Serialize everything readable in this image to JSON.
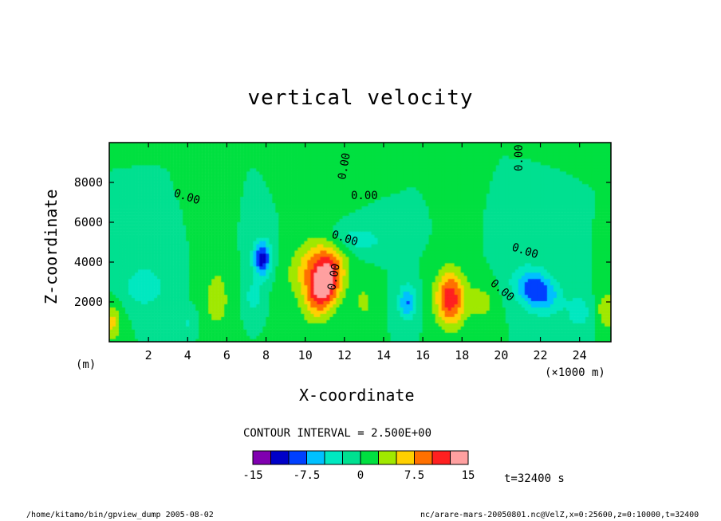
{
  "chart_data": {
    "type": "heatmap",
    "title": "vertical velocity",
    "xlabel": "X-coordinate",
    "ylabel": "Z-coordinate",
    "x_unit": "(×1000 m)",
    "y_unit": "(m)",
    "xlim": [
      0,
      25.6
    ],
    "ylim": [
      0,
      10000
    ],
    "x_ticks": [
      2,
      4,
      6,
      8,
      10,
      12,
      14,
      16,
      18,
      20,
      22,
      24
    ],
    "y_ticks": [
      2000,
      4000,
      6000,
      8000
    ],
    "contour_interval_text": "CONTOUR INTERVAL = 2.500E+00",
    "contour_labels": [
      "0.00",
      "0.00",
      "0.00",
      "0.00",
      "0.00",
      "0.00",
      "0.00",
      "0.00"
    ],
    "colorbar": {
      "colors": [
        "#8000b0",
        "#0000c8",
        "#0040ff",
        "#00c0ff",
        "#00e8c0",
        "#00e090",
        "#00e040",
        "#a0e800",
        "#ffd000",
        "#ff7000",
        "#ff2020",
        "#ffa0a0"
      ],
      "tick_labels": [
        "-15",
        "-7.5",
        "0",
        "7.5",
        "15"
      ],
      "tick_values": [
        -15,
        -7.5,
        0,
        7.5,
        15
      ],
      "range": [
        -15,
        15
      ]
    },
    "time_label": "t=32400 s",
    "features": [
      {
        "x": 11.0,
        "z": 2900,
        "w": 15.0,
        "sx": 0.85,
        "sz": 1500,
        "tilt": -0.00022
      },
      {
        "x": 10.3,
        "z": 4000,
        "w": 6.0,
        "sx": 1.1,
        "sz": 1500,
        "tilt": -0.0003
      },
      {
        "x": 17.4,
        "z": 2200,
        "w": 12.0,
        "sx": 0.75,
        "sz": 1400,
        "tilt": 0
      },
      {
        "x": 5.5,
        "z": 2200,
        "w": 4.5,
        "sx": 0.6,
        "sz": 1500,
        "tilt": 0
      },
      {
        "x": 0.1,
        "z": 1000,
        "w": 6.0,
        "sx": 0.5,
        "sz": 900,
        "tilt": 0
      },
      {
        "x": 25.4,
        "z": 1600,
        "w": 5.0,
        "sx": 0.5,
        "sz": 1000,
        "tilt": 0
      },
      {
        "x": 13.0,
        "z": 2000,
        "w": 3.0,
        "sx": 0.6,
        "sz": 1200,
        "tilt": 0
      },
      {
        "x": 19.0,
        "z": 2000,
        "w": 3.5,
        "sx": 0.7,
        "sz": 1000,
        "tilt": 0
      },
      {
        "x": 7.8,
        "z": 4200,
        "w": -12.0,
        "sx": 0.45,
        "sz": 900,
        "tilt": 0
      },
      {
        "x": 7.4,
        "z": 2300,
        "w": -5.0,
        "sx": 0.4,
        "sz": 700,
        "tilt": 0
      },
      {
        "x": 15.2,
        "z": 2000,
        "w": -8.0,
        "sx": 0.45,
        "sz": 900,
        "tilt": 0
      },
      {
        "x": 21.8,
        "z": 2600,
        "w": -10.0,
        "sx": 1.1,
        "sz": 1100,
        "tilt": 0.0003
      },
      {
        "x": 1.8,
        "z": 2800,
        "w": -5.0,
        "sx": 1.0,
        "sz": 1000,
        "tilt": 0
      },
      {
        "x": 12.6,
        "z": 5200,
        "w": -4.0,
        "sx": 1.6,
        "sz": 700,
        "tilt": 0.0004
      },
      {
        "x": 24.0,
        "z": 1500,
        "w": -4.0,
        "sx": 0.6,
        "sz": 900,
        "tilt": 0
      },
      {
        "x": 4.0,
        "z": 1000,
        "w": -3.0,
        "sx": 0.4,
        "sz": 500,
        "tilt": 0
      }
    ]
  },
  "footer": {
    "left": "/home/kitamo/bin/gpview_dump  2005-08-02",
    "right": "nc/arare-mars-20050801.nc@VelZ,x=0:25600,z=0:10000,t=32400"
  }
}
